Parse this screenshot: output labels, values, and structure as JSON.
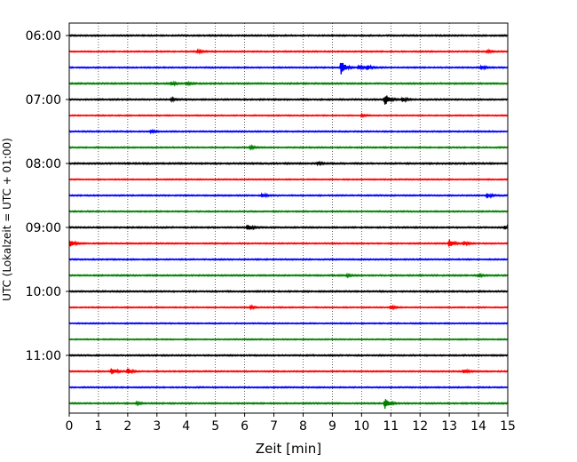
{
  "chart_data": {
    "type": "line",
    "chart_kind": "helicorder seismogram",
    "xlabel": "Zeit  [min]",
    "ylabel": "UTC (Lokalzeit = UTC + 01:00)",
    "xlim": [
      0,
      15
    ],
    "x_ticks": [
      0,
      1,
      2,
      3,
      4,
      5,
      6,
      7,
      8,
      9,
      10,
      11,
      12,
      13,
      14,
      15
    ],
    "x_tick_labels": [
      "0",
      "1",
      "2",
      "3",
      "4",
      "5",
      "6",
      "7",
      "8",
      "9",
      "10",
      "11",
      "12",
      "13",
      "14",
      "15"
    ],
    "y_tick_labels": [
      {
        "label": "06:00",
        "trace": 0
      },
      {
        "label": "07:00",
        "trace": 4
      },
      {
        "label": "08:00",
        "trace": 8
      },
      {
        "label": "09:00",
        "trace": 12
      },
      {
        "label": "10:00",
        "trace": 16
      },
      {
        "label": "11:00",
        "trace": 20
      }
    ],
    "grid": "vertical dotted lines at each minute",
    "trace_colors": [
      "#000000",
      "#ff0000",
      "#0000ff",
      "#008000"
    ],
    "traces": [
      {
        "start": "06:00",
        "noise": 0.55,
        "events": []
      },
      {
        "start": "06:15",
        "noise": 0.5,
        "events": [
          {
            "t": 4.4,
            "amp": 1.6
          },
          {
            "t": 14.3,
            "amp": 1.3
          }
        ]
      },
      {
        "start": "06:30",
        "noise": 0.5,
        "events": [
          {
            "t": 9.3,
            "amp": 9.0
          },
          {
            "t": 9.9,
            "amp": 2.2
          },
          {
            "t": 10.2,
            "amp": 2.8
          },
          {
            "t": 14.1,
            "amp": 2.0
          }
        ]
      },
      {
        "start": "06:45",
        "noise": 0.55,
        "events": [
          {
            "t": 3.5,
            "amp": 1.8
          },
          {
            "t": 4.0,
            "amp": 1.6
          }
        ]
      },
      {
        "start": "07:00",
        "noise": 0.55,
        "events": [
          {
            "t": 3.5,
            "amp": 1.2
          },
          {
            "t": 10.8,
            "amp": 6.5
          },
          {
            "t": 11.4,
            "amp": 2.0
          }
        ]
      },
      {
        "start": "07:15",
        "noise": 0.45,
        "events": [
          {
            "t": 10.0,
            "amp": 1.2
          }
        ]
      },
      {
        "start": "07:30",
        "noise": 0.5,
        "events": [
          {
            "t": 2.8,
            "amp": 1.4
          }
        ]
      },
      {
        "start": "07:45",
        "noise": 0.5,
        "events": [
          {
            "t": 6.2,
            "amp": 1.5
          }
        ]
      },
      {
        "start": "08:00",
        "noise": 0.6,
        "events": [
          {
            "t": 8.5,
            "amp": 1.3
          }
        ]
      },
      {
        "start": "08:15",
        "noise": 0.45,
        "events": []
      },
      {
        "start": "08:30",
        "noise": 0.5,
        "events": [
          {
            "t": 6.6,
            "amp": 2.2
          },
          {
            "t": 14.3,
            "amp": 2.5
          }
        ]
      },
      {
        "start": "08:45",
        "noise": 0.5,
        "events": []
      },
      {
        "start": "09:00",
        "noise": 0.55,
        "events": [
          {
            "t": 6.1,
            "amp": 3.5
          },
          {
            "t": 14.9,
            "amp": 1.8
          }
        ]
      },
      {
        "start": "09:15",
        "noise": 0.5,
        "events": [
          {
            "t": 0.05,
            "amp": 3.5
          },
          {
            "t": 13.0,
            "amp": 4.5
          },
          {
            "t": 13.5,
            "amp": 2.0
          }
        ]
      },
      {
        "start": "09:30",
        "noise": 0.5,
        "events": []
      },
      {
        "start": "09:45",
        "noise": 0.55,
        "events": [
          {
            "t": 9.5,
            "amp": 1.2
          },
          {
            "t": 14.0,
            "amp": 1.5
          }
        ]
      },
      {
        "start": "10:00",
        "noise": 0.55,
        "events": []
      },
      {
        "start": "10:15",
        "noise": 0.45,
        "events": [
          {
            "t": 6.2,
            "amp": 1.4
          },
          {
            "t": 11.0,
            "amp": 2.0
          }
        ]
      },
      {
        "start": "10:30",
        "noise": 0.45,
        "events": []
      },
      {
        "start": "10:45",
        "noise": 0.45,
        "events": []
      },
      {
        "start": "11:00",
        "noise": 0.55,
        "events": []
      },
      {
        "start": "11:15",
        "noise": 0.5,
        "events": [
          {
            "t": 1.45,
            "amp": 4.5
          },
          {
            "t": 2.0,
            "amp": 3.5
          },
          {
            "t": 13.5,
            "amp": 2.5
          }
        ]
      },
      {
        "start": "11:30",
        "noise": 0.5,
        "events": []
      },
      {
        "start": "11:45",
        "noise": 0.55,
        "events": [
          {
            "t": 2.3,
            "amp": 1.2
          },
          {
            "t": 10.8,
            "amp": 5.5
          }
        ]
      }
    ]
  }
}
